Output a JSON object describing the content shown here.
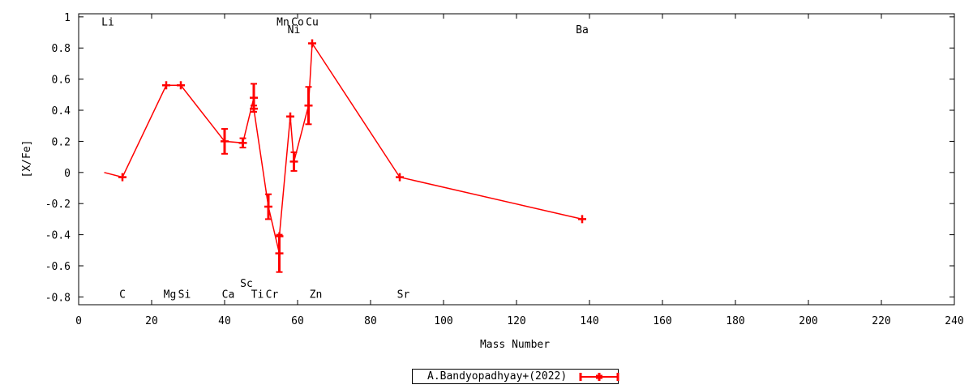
{
  "chart_data": {
    "type": "line",
    "xlabel": "Mass Number",
    "ylabel": "[X/Fe]",
    "xlim": [
      0,
      240
    ],
    "ylim": [
      -0.85,
      1.02
    ],
    "xticks": [
      0,
      20,
      40,
      60,
      80,
      100,
      120,
      140,
      160,
      180,
      200,
      220,
      240
    ],
    "yticks": [
      -0.8,
      -0.6,
      -0.4,
      -0.2,
      0,
      0.2,
      0.4,
      0.6,
      0.8,
      1
    ],
    "ytick_labels": [
      "-0.8",
      "-0.6",
      "-0.4",
      "-0.2",
      "0",
      "0.2",
      "0.4",
      "0.6",
      "0.8",
      "1"
    ],
    "grid": false,
    "legend_position": "bottom-center",
    "series": [
      {
        "name": "A.Bandyopadhyay+(2022)",
        "color": "#ff0000",
        "points": [
          {
            "x": 7,
            "y": 0.0
          },
          {
            "x": 12,
            "y": -0.03,
            "err": 0.0
          },
          {
            "x": 24,
            "y": 0.56,
            "err": 0.0
          },
          {
            "x": 28,
            "y": 0.56,
            "err": 0.0
          },
          {
            "x": 40,
            "y": 0.2,
            "err": 0.08
          },
          {
            "x": 45,
            "y": 0.19,
            "err": 0.03
          },
          {
            "x": 48,
            "y": 0.48,
            "err": 0.09
          },
          {
            "x": 48,
            "y": 0.41,
            "err": 0.02
          },
          {
            "x": 52,
            "y": -0.22,
            "err": 0.08
          },
          {
            "x": 55,
            "y": -0.52,
            "err": 0.12
          },
          {
            "x": 55,
            "y": -0.41,
            "err": 0.0
          },
          {
            "x": 58,
            "y": 0.36,
            "err": 0.0
          },
          {
            "x": 59,
            "y": 0.07,
            "err": 0.06
          },
          {
            "x": 63,
            "y": 0.43,
            "err": 0.12
          },
          {
            "x": 64,
            "y": 0.83,
            "err": 0.0
          },
          {
            "x": 88,
            "y": -0.03,
            "err": 0.0
          },
          {
            "x": 138,
            "y": -0.3,
            "err": 0.0
          }
        ]
      }
    ],
    "element_labels": [
      {
        "text": "Li",
        "x": 8,
        "y": 0.97
      },
      {
        "text": "C",
        "x": 12,
        "y": -0.78
      },
      {
        "text": "Mg",
        "x": 25,
        "y": -0.78
      },
      {
        "text": "Si",
        "x": 29,
        "y": -0.78
      },
      {
        "text": "Ca",
        "x": 41,
        "y": -0.78
      },
      {
        "text": "Sc",
        "x": 46,
        "y": -0.71
      },
      {
        "text": "Ti",
        "x": 49,
        "y": -0.78
      },
      {
        "text": "Cr",
        "x": 53,
        "y": -0.78
      },
      {
        "text": "Mn",
        "x": 56,
        "y": 0.97
      },
      {
        "text": "Co",
        "x": 60,
        "y": 0.97
      },
      {
        "text": "Ni",
        "x": 59,
        "y": 0.92
      },
      {
        "text": "Cu",
        "x": 64,
        "y": 0.97
      },
      {
        "text": "Zn",
        "x": 65,
        "y": -0.78
      },
      {
        "text": "Sr",
        "x": 89,
        "y": -0.78
      },
      {
        "text": "Ba",
        "x": 138,
        "y": 0.92
      }
    ]
  }
}
